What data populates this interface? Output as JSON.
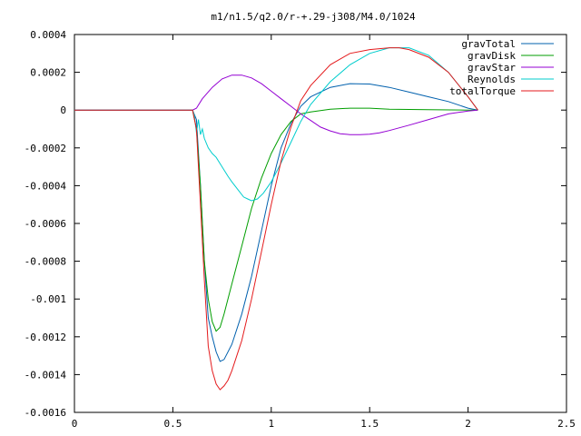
{
  "chart_data": {
    "type": "line",
    "title": "m1/n1.5/q2.0/r-+.29-j308/M4.0/1024",
    "xlabel": "",
    "ylabel": "",
    "xlim": [
      0,
      2.5
    ],
    "ylim": [
      -0.0016,
      0.0004
    ],
    "grid": false,
    "legend_position": "top-right",
    "x_ticks": [
      0,
      0.5,
      1,
      1.5,
      2,
      2.5
    ],
    "x_tick_labels": [
      "0",
      "0.5",
      "1",
      "1.5",
      "2",
      "2.5"
    ],
    "y_ticks": [
      0.0004,
      0.0002,
      0,
      -0.0002,
      -0.0004,
      -0.0006,
      -0.0008,
      -0.001,
      -0.0012,
      -0.0014,
      -0.0016
    ],
    "y_tick_labels": [
      "0.0004",
      "0.0002",
      "0",
      "-0.0002",
      "-0.0004",
      "-0.0006",
      "-0.0008",
      "-0.001",
      "-0.0012",
      "-0.0014",
      "-0.0016"
    ],
    "series": [
      {
        "name": "gravTotal",
        "color": "#0060ad",
        "x": [
          0,
          0.6,
          0.62,
          0.64,
          0.66,
          0.68,
          0.7,
          0.72,
          0.74,
          0.76,
          0.8,
          0.85,
          0.9,
          0.95,
          1.0,
          1.05,
          1.1,
          1.15,
          1.2,
          1.3,
          1.4,
          1.5,
          1.6,
          1.7,
          1.8,
          1.9,
          2.0,
          2.05
        ],
        "y": [
          0,
          0,
          -5e-05,
          -0.0004,
          -0.0008,
          -0.0011,
          -0.0012,
          -0.00128,
          -0.00133,
          -0.00132,
          -0.00124,
          -0.00108,
          -0.00088,
          -0.00064,
          -0.0004,
          -0.0002,
          -7e-05,
          2e-05,
          7e-05,
          0.00012,
          0.00014,
          0.000138,
          0.00012,
          9.5e-05,
          7e-05,
          4.5e-05,
          1e-05,
          0
        ]
      },
      {
        "name": "gravDisk",
        "color": "#009e00",
        "x": [
          0,
          0.6,
          0.62,
          0.64,
          0.66,
          0.68,
          0.7,
          0.72,
          0.74,
          0.76,
          0.8,
          0.85,
          0.9,
          0.95,
          1.0,
          1.05,
          1.1,
          1.15,
          1.2,
          1.3,
          1.4,
          1.5,
          1.6,
          1.8,
          2.0,
          2.05
        ],
        "y": [
          0,
          0,
          -0.0001,
          -0.0004,
          -0.0008,
          -0.001,
          -0.00112,
          -0.00117,
          -0.00115,
          -0.00108,
          -0.00092,
          -0.00072,
          -0.00052,
          -0.00036,
          -0.00023,
          -0.00013,
          -6e-05,
          -2e-05,
          -1e-05,
          5e-06,
          1e-05,
          1e-05,
          5e-06,
          2e-06,
          0,
          0
        ]
      },
      {
        "name": "gravStar",
        "color": "#9400d3",
        "x": [
          0,
          0.6,
          0.62,
          0.65,
          0.7,
          0.75,
          0.8,
          0.85,
          0.9,
          0.95,
          1.0,
          1.05,
          1.1,
          1.15,
          1.2,
          1.25,
          1.3,
          1.35,
          1.4,
          1.45,
          1.5,
          1.55,
          1.6,
          1.7,
          1.8,
          1.9,
          2.0,
          2.05
        ],
        "y": [
          0,
          0,
          1e-05,
          6e-05,
          0.00012,
          0.000165,
          0.000185,
          0.000185,
          0.00017,
          0.00014,
          0.0001,
          6e-05,
          2e-05,
          -2e-05,
          -5.5e-05,
          -9e-05,
          -0.00011,
          -0.000125,
          -0.00013,
          -0.00013,
          -0.000128,
          -0.00012,
          -0.000108,
          -8e-05,
          -5e-05,
          -2e-05,
          -5e-06,
          0
        ]
      },
      {
        "name": "Reynolds",
        "color": "#00cdcd",
        "x": [
          0,
          0.6,
          0.61,
          0.62,
          0.63,
          0.64,
          0.65,
          0.66,
          0.68,
          0.7,
          0.72,
          0.75,
          0.78,
          0.8,
          0.83,
          0.86,
          0.88,
          0.9,
          0.93,
          0.96,
          1.0,
          1.05,
          1.1,
          1.15,
          1.2,
          1.3,
          1.4,
          1.5,
          1.6,
          1.7,
          1.8,
          1.9,
          2.0,
          2.05
        ],
        "y": [
          0,
          0,
          -3e-05,
          -0.00012,
          -5e-05,
          -0.00013,
          -0.0001,
          -0.00015,
          -0.0002,
          -0.00023,
          -0.00025,
          -0.0003,
          -0.00035,
          -0.00038,
          -0.00042,
          -0.00046,
          -0.00047,
          -0.00048,
          -0.00047,
          -0.00044,
          -0.00038,
          -0.00028,
          -0.00017,
          -6e-05,
          3e-05,
          0.00015,
          0.00024,
          0.0003,
          0.00033,
          0.00033,
          0.00029,
          0.0002,
          7e-05,
          0
        ]
      },
      {
        "name": "totalTorque",
        "color": "#e41a1c",
        "x": [
          0,
          0.6,
          0.62,
          0.64,
          0.66,
          0.68,
          0.7,
          0.72,
          0.74,
          0.76,
          0.78,
          0.8,
          0.85,
          0.9,
          0.95,
          1.0,
          1.05,
          1.1,
          1.15,
          1.2,
          1.3,
          1.4,
          1.5,
          1.6,
          1.65,
          1.7,
          1.8,
          1.9,
          2.0,
          2.05
        ],
        "y": [
          0,
          0,
          -0.0001,
          -0.0005,
          -0.0009,
          -0.00125,
          -0.00138,
          -0.00145,
          -0.00148,
          -0.00146,
          -0.00143,
          -0.00138,
          -0.00122,
          -0.001,
          -0.00075,
          -0.0005,
          -0.00027,
          -9e-05,
          5e-05,
          0.00013,
          0.00024,
          0.0003,
          0.00032,
          0.00033,
          0.00033,
          0.00032,
          0.00028,
          0.0002,
          7e-05,
          0
        ]
      }
    ]
  }
}
